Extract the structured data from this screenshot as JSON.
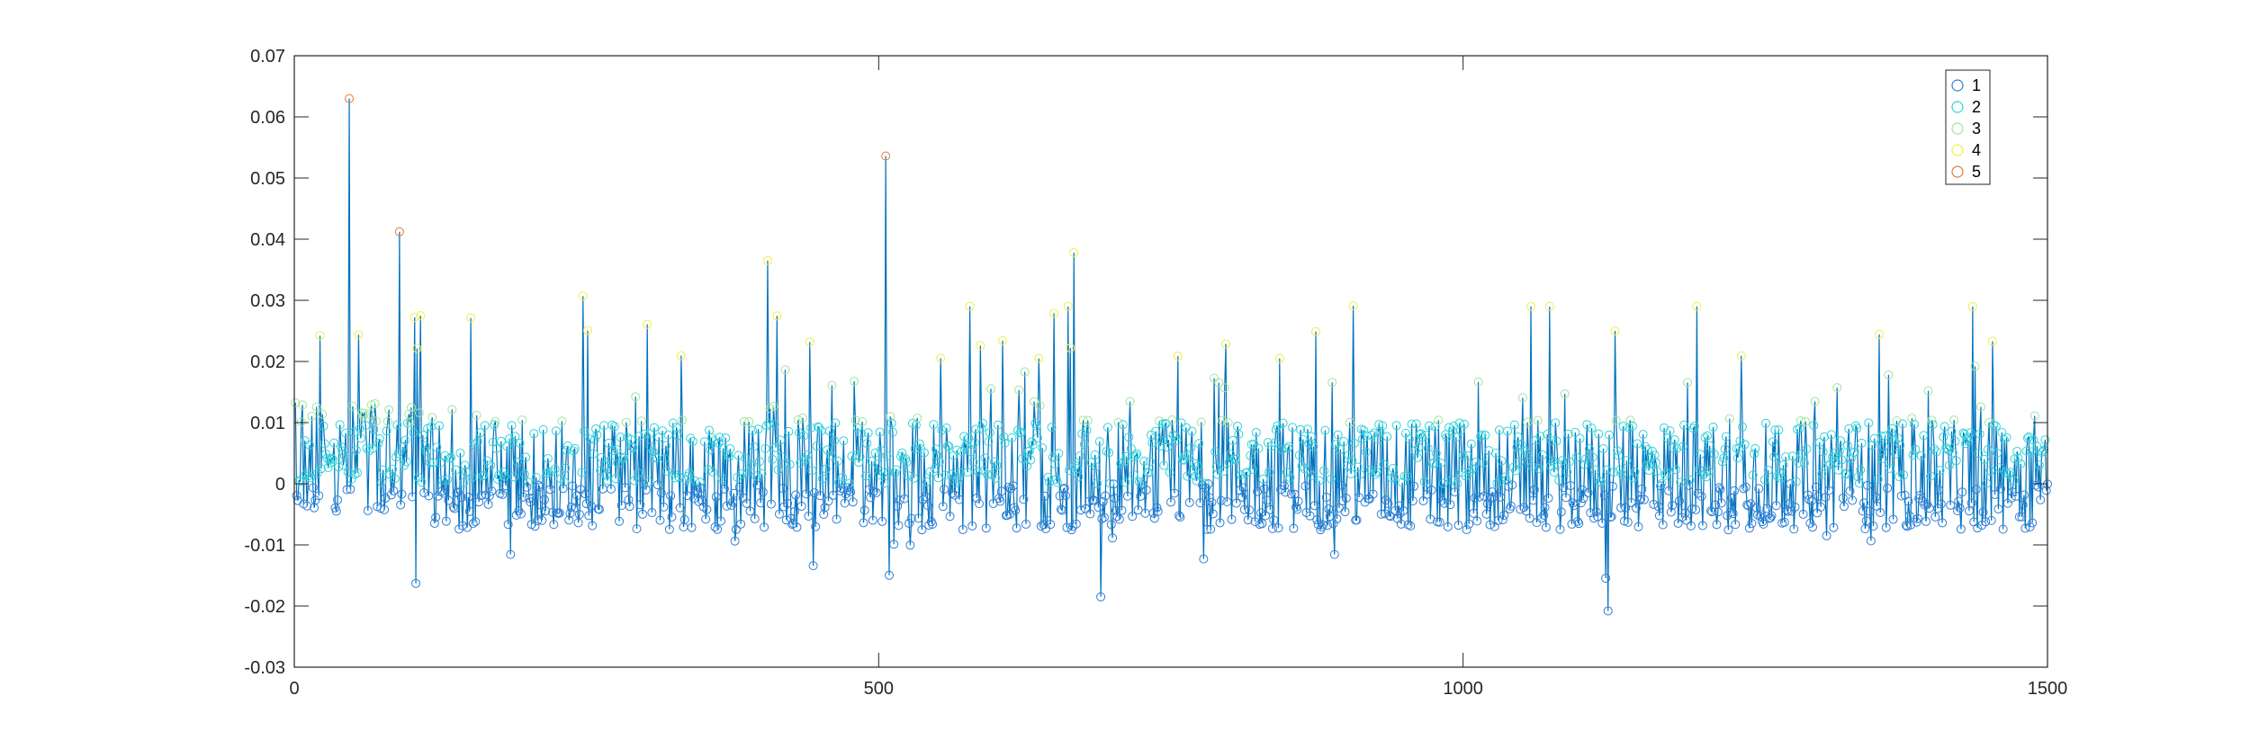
{
  "chart_data": {
    "type": "line",
    "title": "",
    "xlabel": "",
    "ylabel": "",
    "xlim": [
      0,
      1500
    ],
    "ylim": [
      -0.03,
      0.07
    ],
    "x_ticks": [
      0,
      500,
      1000,
      1500
    ],
    "x_tick_labels": [
      "0",
      "500",
      "1000",
      "1500"
    ],
    "y_ticks": [
      -0.03,
      -0.02,
      -0.01,
      0,
      0.01,
      0.02,
      0.03,
      0.04,
      0.05,
      0.06,
      0.07
    ],
    "y_tick_labels": [
      "-0.03",
      "-0.02",
      "-0.01",
      "0",
      "0.01",
      "0.02",
      "0.03",
      "0.04",
      "0.05",
      "0.06",
      "0.07"
    ],
    "grid": false,
    "legend_position": "top-right",
    "line_color": "#0072BD",
    "marker": "circle",
    "n_points": 1500,
    "series": [
      {
        "name": "1",
        "color": "#2E7FD6",
        "y_range": [
          -0.021,
          0.0
        ]
      },
      {
        "name": "2",
        "color": "#2DD4DC",
        "y_range": [
          0.0,
          0.01
        ]
      },
      {
        "name": "3",
        "color": "#9CE69A",
        "y_range": [
          0.01,
          0.02
        ]
      },
      {
        "name": "4",
        "color": "#F1EE43",
        "y_range": [
          0.02,
          0.04
        ]
      },
      {
        "name": "5",
        "color": "#E07B3C",
        "y_range": [
          0.04,
          0.063
        ]
      }
    ],
    "notable_peaks": [
      {
        "x": 47,
        "y": 0.063
      },
      {
        "x": 90,
        "y": 0.0412
      },
      {
        "x": 108,
        "y": 0.0275
      },
      {
        "x": 247,
        "y": 0.0307
      },
      {
        "x": 405,
        "y": 0.0365
      },
      {
        "x": 506,
        "y": 0.0536
      },
      {
        "x": 667,
        "y": 0.0378
      },
      {
        "x": 843,
        "y": 0.0205
      },
      {
        "x": 906,
        "y": 0.0291
      }
    ],
    "notable_troughs": [
      {
        "x": 104,
        "y": -0.0163
      },
      {
        "x": 690,
        "y": -0.0185
      },
      {
        "x": 1124,
        "y": -0.0208
      }
    ]
  }
}
